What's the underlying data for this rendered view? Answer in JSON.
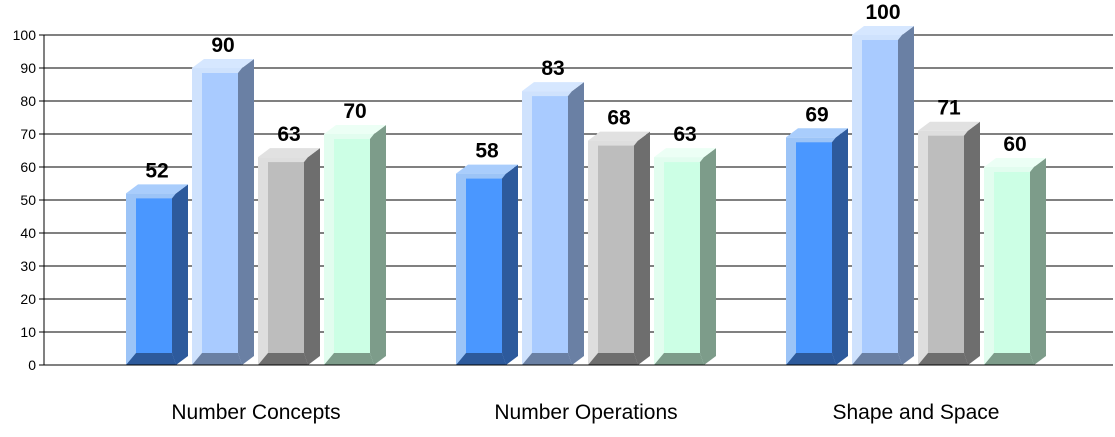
{
  "chart_data": {
    "type": "bar",
    "categories": [
      "Number Concepts",
      "Number Operations",
      "Shape and Space"
    ],
    "series": [
      {
        "values": [
          52,
          58,
          69
        ]
      },
      {
        "values": [
          90,
          83,
          100
        ]
      },
      {
        "values": [
          63,
          68,
          71
        ]
      },
      {
        "values": [
          70,
          63,
          60
        ]
      }
    ],
    "ylim": [
      0,
      100
    ],
    "yticks": [
      0,
      10,
      20,
      30,
      40,
      50,
      60,
      70,
      80,
      90,
      100
    ],
    "grid": true,
    "legend": "none",
    "data_labels": true,
    "colors": [
      {
        "front": "#4a97ff",
        "top": "#a9cdfc",
        "side": "#2d5a9c",
        "rim": "#9cc4f7"
      },
      {
        "front": "#a9cbff",
        "top": "#d6e7ff",
        "side": "#6a80a4",
        "rim": "#cfe2fd"
      },
      {
        "front": "#bdbdbd",
        "top": "#e1e1e1",
        "side": "#6e6e6e",
        "rim": "#dedede"
      },
      {
        "front": "#ccffe5",
        "top": "#ecfff5",
        "side": "#7d9c8a",
        "rim": "#e2fdef"
      }
    ]
  }
}
